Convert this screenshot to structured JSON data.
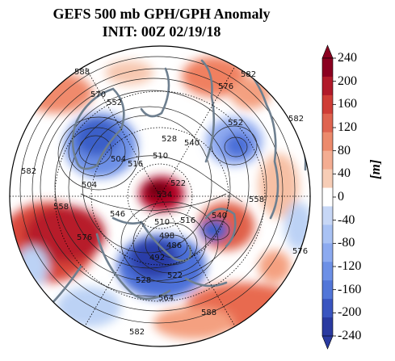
{
  "title": {
    "line1": "GEFS 500 mb GPH/GPH Anomaly",
    "line2": "INIT: 00Z 02/19/18"
  },
  "colorbar": {
    "units": "[m]",
    "ticks": [
      "240",
      "200",
      "160",
      "120",
      "80",
      "40",
      "0",
      "-40",
      "-80",
      "-120",
      "-160",
      "-200",
      "-240"
    ],
    "range": [
      -240,
      240
    ],
    "colors": {
      "high": "#8b0020",
      "mid_high": "#e0604a",
      "low_high": "#f7c8b0",
      "neutral": "#ffffff",
      "low_low": "#bcd2f5",
      "mid_low": "#6d90e6",
      "low": "#2c3ea8"
    }
  },
  "contour_labels": [
    {
      "text": "588"
    },
    {
      "text": "570"
    },
    {
      "text": "552"
    },
    {
      "text": "576"
    },
    {
      "text": "582"
    },
    {
      "text": "552"
    },
    {
      "text": "582"
    },
    {
      "text": "528"
    },
    {
      "text": "540"
    },
    {
      "text": "504"
    },
    {
      "text": "510"
    },
    {
      "text": "516"
    },
    {
      "text": "582"
    },
    {
      "text": "504"
    },
    {
      "text": "522"
    },
    {
      "text": "534"
    },
    {
      "text": "558"
    },
    {
      "text": "558"
    },
    {
      "text": "546"
    },
    {
      "text": "510"
    },
    {
      "text": "516"
    },
    {
      "text": "540"
    },
    {
      "text": "576"
    },
    {
      "text": "498"
    },
    {
      "text": "486"
    },
    {
      "text": "492"
    },
    {
      "text": "528"
    },
    {
      "text": "522"
    },
    {
      "text": "564"
    },
    {
      "text": "588"
    },
    {
      "text": "576"
    },
    {
      "text": "582"
    }
  ]
}
